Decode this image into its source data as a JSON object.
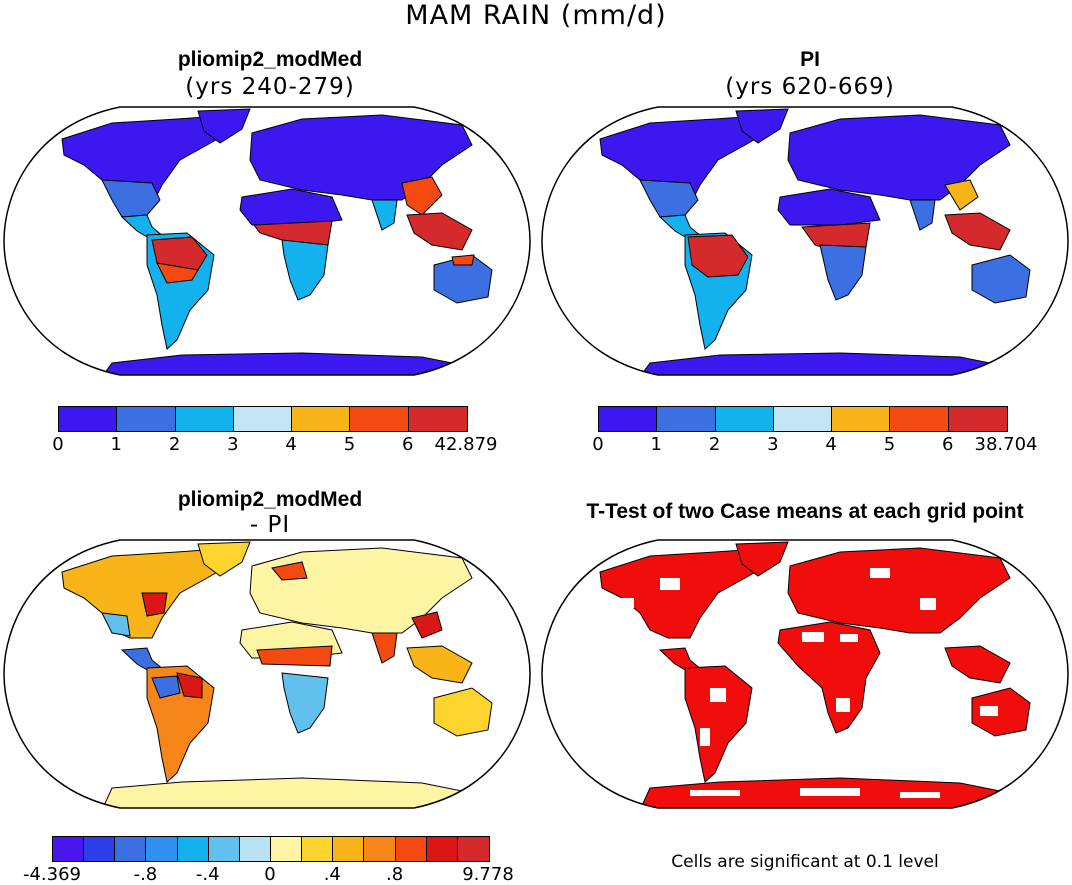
{
  "title": "MAM RAIN (mm/d)",
  "panels": {
    "top_left": {
      "title": "pliomip2_modMed",
      "subtitle": "(yrs 240-279)"
    },
    "top_right": {
      "title": "PI",
      "subtitle": "(yrs 620-669)"
    },
    "bottom_left": {
      "title": "pliomip2_modMed",
      "subtitle": "- PI"
    },
    "bottom_right": {
      "title": "T-Test of two Case means at each grid point",
      "note": "Cells are significant at 0.1 level"
    }
  },
  "colorbars": {
    "top_left": {
      "colors": [
        "#3c17f0",
        "#3b6fe2",
        "#13b1ee",
        "#c2e4f4",
        "#f9b41a",
        "#f44a12",
        "#d42a2c"
      ],
      "ticks": [
        "0",
        "1",
        "2",
        "3",
        "4",
        "5",
        "6",
        "42.879"
      ]
    },
    "top_right": {
      "colors": [
        "#3c17f0",
        "#3b6fe2",
        "#13b1ee",
        "#c2e4f4",
        "#f9b41a",
        "#f44a12",
        "#d42a2c"
      ],
      "ticks": [
        "0",
        "1",
        "2",
        "3",
        "4",
        "5",
        "6",
        "38.704"
      ]
    },
    "bottom_left": {
      "colors": [
        "#4a16ee",
        "#2c3ee7",
        "#3b6fe2",
        "#2f90f0",
        "#13b1ee",
        "#62c0ee",
        "#b9e2f5",
        "#fdf5a4",
        "#fdd42e",
        "#f9b41a",
        "#f7861a",
        "#f44a12",
        "#db1616",
        "#d42a2c"
      ],
      "ticks": [
        "-4.369",
        "-.8",
        "-.4",
        "0",
        ".4",
        ".8",
        "9.778"
      ]
    }
  },
  "colors": {
    "ocean": "#ffffff",
    "outline": "#000000",
    "significant": "#f20d0d"
  }
}
